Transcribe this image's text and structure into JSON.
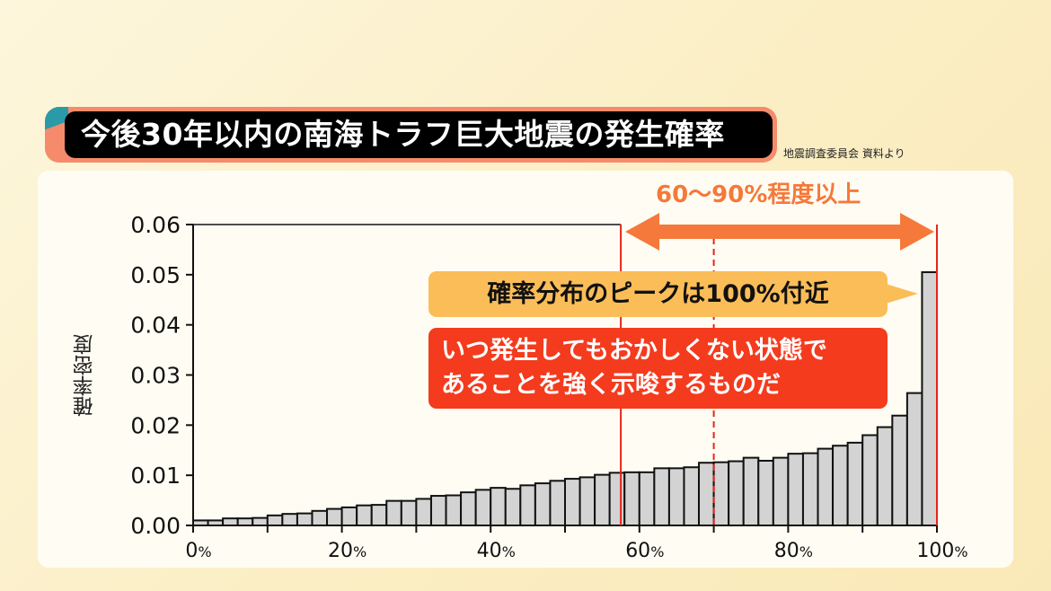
{
  "header": {
    "title": "今後30年以内の南海トラフ巨大地震の発生確率",
    "source": "地震調査委員会 資料より"
  },
  "annotations": {
    "range_label": "60〜90%程度以上",
    "peak_note": "確率分布のピークは100%付近",
    "warning_line1": "いつ発生してもおかしくない状態で",
    "warning_line2": "あることを強く示唆するものだ"
  },
  "colors": {
    "bar_fill": "#d3d3d3",
    "bar_edge": "#111111",
    "range_line": "#e8241a",
    "arrow": "#f5793a",
    "callout_yellow": "#fbbd58",
    "callout_red": "#f43b1e"
  },
  "chart_data": {
    "type": "bar",
    "title": "",
    "xlabel": "",
    "ylabel": "確率密度",
    "xlim": [
      0,
      100
    ],
    "ylim": [
      0,
      0.06
    ],
    "bin_width": 2,
    "x_ticks": [
      {
        "v": 0,
        "num": "0",
        "unit": "%"
      },
      {
        "v": 20,
        "num": "20",
        "unit": "%"
      },
      {
        "v": 40,
        "num": "40",
        "unit": "%"
      },
      {
        "v": 60,
        "num": "60",
        "unit": "%"
      },
      {
        "v": 80,
        "num": "80",
        "unit": "%"
      },
      {
        "v": 100,
        "num": "100",
        "unit": "%"
      }
    ],
    "y_ticks": [
      "0.00",
      "0.01",
      "0.02",
      "0.03",
      "0.04",
      "0.05",
      "0.06"
    ],
    "grid": false,
    "values": [
      0.001,
      0.001,
      0.0014,
      0.0014,
      0.0015,
      0.002,
      0.0023,
      0.0024,
      0.0029,
      0.0033,
      0.0036,
      0.004,
      0.0041,
      0.0049,
      0.0049,
      0.0053,
      0.0059,
      0.006,
      0.0066,
      0.0071,
      0.0075,
      0.0073,
      0.008,
      0.0084,
      0.0089,
      0.0093,
      0.0096,
      0.0101,
      0.0105,
      0.0106,
      0.0106,
      0.0114,
      0.0114,
      0.0116,
      0.0125,
      0.0126,
      0.0128,
      0.0135,
      0.0129,
      0.0135,
      0.0143,
      0.0144,
      0.0153,
      0.0159,
      0.0165,
      0.018,
      0.0196,
      0.0219,
      0.0264,
      0.0505
    ],
    "range_lines": {
      "lower": 57.5,
      "median": 70,
      "upper": 100
    }
  }
}
